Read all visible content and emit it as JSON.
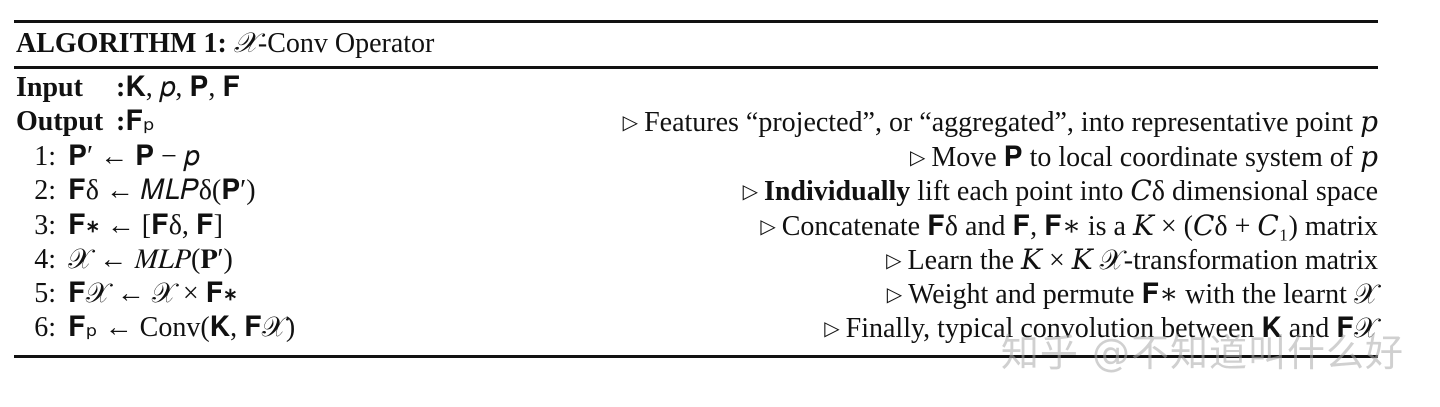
{
  "header": {
    "algorithm_label": "ALGORITHM 1:",
    "operator_symbol": "𝒳",
    "operator_name": "-Conv Operator"
  },
  "input": {
    "keyword": "Input",
    "colon": ":",
    "value": "𝐊, 𝑝, 𝐏, 𝐅"
  },
  "output": {
    "keyword": "Output",
    "colon": ":",
    "value": "𝐅ₚ",
    "comment": "Features “projected”, or “aggregated”, into representative point 𝑝"
  },
  "steps": [
    {
      "num": "1:",
      "code": "𝐏′ ← 𝐏 − 𝑝",
      "comment_pre": "Move ",
      "comment_bold": "",
      "comment": "𝐏 to local coordinate system of 𝑝"
    },
    {
      "num": "2:",
      "code": "𝐅δ ← 𝑀𝐿𝑃δ(𝐏′)",
      "comment_pre": "",
      "comment_bold": "Individually",
      "comment": " lift each point into 𝐶δ dimensional space"
    },
    {
      "num": "3:",
      "code": "𝐅∗ ← [𝐅δ, 𝐅]",
      "comment_pre": "Concatenate ",
      "comment_bold": "",
      "comment": "𝐅δ and 𝐅, 𝐅∗ is a 𝐾 × (𝐶δ + 𝐶₁) matrix"
    },
    {
      "num": "4:",
      "code": "𝒳 ← 𝑀𝐿𝑃(𝐏′)",
      "comment_pre": "Learn the ",
      "comment_bold": "",
      "comment": "𝐾 × 𝐾 𝒳-transformation matrix"
    },
    {
      "num": "5:",
      "code": "𝐅𝒳 ← 𝒳 × 𝐅∗",
      "comment_pre": "Weight and permute ",
      "comment_bold": "",
      "comment": "𝐅∗ with the learnt 𝒳"
    },
    {
      "num": "6:",
      "code": "𝐅ₚ ← Conv(𝐊, 𝐅𝒳)",
      "comment_pre": "Finally, typical convolution between ",
      "comment_bold": "",
      "comment": "𝐊 and 𝐅𝒳"
    }
  ],
  "comment_marker": "▷",
  "watermark": "知乎 @不知道叫什么好"
}
